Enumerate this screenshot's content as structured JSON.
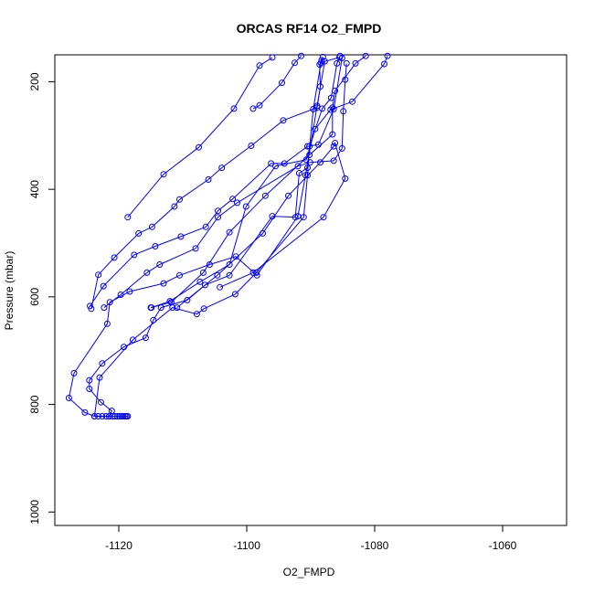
{
  "chart_data": {
    "type": "line",
    "title": "ORCAS RF14 O2_FMPD",
    "xlabel": "O2_FMPD",
    "ylabel": "Pressure (mbar)",
    "xlim": [
      -1130,
      -1050
    ],
    "ylim": [
      1025,
      150
    ],
    "y_inverted": true,
    "x_ticks": [
      -1120,
      -1100,
      -1080,
      -1060
    ],
    "x_tick_labels": [
      "-1120",
      "-1100",
      "-1080",
      "-1060"
    ],
    "y_ticks": [
      200,
      400,
      600,
      800,
      1000
    ],
    "y_tick_labels": [
      "200",
      "400",
      "600",
      "800",
      "1000"
    ],
    "grid": false,
    "legend": "none",
    "series_color": "#0000ff",
    "marker": "open-circle",
    "series": [
      {
        "points": [
          [
            -1118.6,
            822
          ],
          [
            -1118.8,
            822
          ],
          [
            -1119.0,
            822
          ],
          [
            -1119.3,
            822
          ],
          [
            -1119.6,
            822
          ],
          [
            -1119.9,
            822
          ],
          [
            -1120.2,
            822
          ],
          [
            -1120.6,
            822
          ],
          [
            -1121.0,
            822
          ],
          [
            -1121.5,
            822
          ],
          [
            -1122.0,
            822
          ],
          [
            -1122.6,
            822
          ],
          [
            -1123.2,
            822
          ],
          [
            -1123.8,
            822
          ],
          [
            -1125.3,
            815
          ],
          [
            -1127.8,
            788
          ],
          [
            -1127.0,
            742
          ],
          [
            -1121.8,
            650
          ],
          [
            -1121.4,
            610
          ],
          [
            -1118.3,
            590
          ],
          [
            -1113.0,
            575
          ],
          [
            -1110.5,
            560
          ],
          [
            -1105.8,
            540
          ],
          [
            -1101.7,
            525
          ],
          [
            -1098.4,
            560
          ],
          [
            -1092.0,
            450
          ],
          [
            -1090.8,
            374
          ],
          [
            -1089.0,
            245
          ],
          [
            -1087.8,
            162
          ],
          [
            -1085.5,
            155
          ]
        ]
      },
      {
        "points": [
          [
            -1121.5,
            822
          ],
          [
            -1121.1,
            812
          ],
          [
            -1122.8,
            796
          ],
          [
            -1124.6,
            771
          ],
          [
            -1124.6,
            755
          ],
          [
            -1122.6,
            724
          ],
          [
            -1119.2,
            693
          ],
          [
            -1115.8,
            676
          ],
          [
            -1114.6,
            643
          ],
          [
            -1113.4,
            620
          ],
          [
            -1109.3,
            606
          ],
          [
            -1106.5,
            578
          ],
          [
            -1102.7,
            560
          ],
          [
            -1096.0,
            450
          ],
          [
            -1092.4,
            452
          ],
          [
            -1091.8,
            370
          ],
          [
            -1090.5,
            360
          ],
          [
            -1089.6,
            251
          ],
          [
            -1088.4,
            165
          ],
          [
            -1088.3,
            160
          ]
        ]
      },
      {
        "points": [
          [
            -1123.8,
            822
          ],
          [
            -1123.0,
            750
          ],
          [
            -1117.8,
            680
          ],
          [
            -1111.6,
            620
          ],
          [
            -1107.8,
            632
          ],
          [
            -1106.7,
            622
          ],
          [
            -1101.8,
            595
          ],
          [
            -1098.5,
            555
          ],
          [
            -1091.1,
            452
          ],
          [
            -1090.5,
            374
          ],
          [
            -1090.2,
            320
          ],
          [
            -1088.2,
            250
          ],
          [
            -1086.8,
            230
          ],
          [
            -1085.9,
            166
          ],
          [
            -1085.4,
            152
          ]
        ]
      },
      {
        "points": [
          [
            -1124.3,
            622
          ],
          [
            -1123.2,
            559
          ],
          [
            -1120.7,
            527
          ],
          [
            -1116.9,
            482
          ],
          [
            -1114.8,
            470
          ],
          [
            -1111.3,
            432
          ],
          [
            -1110.5,
            419
          ],
          [
            -1106.0,
            382
          ],
          [
            -1103.9,
            360
          ],
          [
            -1099.3,
            319
          ],
          [
            -1094.3,
            272
          ],
          [
            -1089.0,
            248
          ],
          [
            -1088.5,
            209
          ],
          [
            -1088.6,
            168
          ],
          [
            -1088.1,
            154
          ]
        ]
      },
      {
        "points": [
          [
            -1124.5,
            617
          ],
          [
            -1122.4,
            580
          ],
          [
            -1117.6,
            522
          ],
          [
            -1114.3,
            506
          ],
          [
            -1110.3,
            488
          ],
          [
            -1106.4,
            470
          ],
          [
            -1104.5,
            440
          ],
          [
            -1102.2,
            418
          ],
          [
            -1096.2,
            352
          ],
          [
            -1094.1,
            352
          ],
          [
            -1090.5,
            320
          ],
          [
            -1088.8,
            317
          ],
          [
            -1086.4,
            251
          ],
          [
            -1085.1,
            156
          ]
        ]
      },
      {
        "points": [
          [
            -1122.3,
            620
          ],
          [
            -1119.7,
            596
          ],
          [
            -1115.6,
            555
          ],
          [
            -1113.6,
            540
          ],
          [
            -1108.0,
            510
          ],
          [
            -1104.5,
            452
          ],
          [
            -1101.5,
            425
          ],
          [
            -1092.0,
            357
          ],
          [
            -1090.1,
            350
          ],
          [
            -1086.4,
            347
          ],
          [
            -1085.1,
            324
          ],
          [
            -1084.9,
            255
          ],
          [
            -1084.6,
            196
          ],
          [
            -1084.4,
            166
          ]
        ]
      },
      {
        "points": [
          [
            -1118.6,
            452
          ],
          [
            -1113.0,
            372
          ],
          [
            -1107.5,
            322
          ],
          [
            -1102.0,
            250
          ],
          [
            -1098.0,
            170
          ],
          [
            -1096.0,
            155
          ]
        ]
      },
      {
        "points": [
          [
            -1114.9,
            620
          ],
          [
            -1112.0,
            608
          ],
          [
            -1107.3,
            572
          ],
          [
            -1102.7,
            540
          ],
          [
            -1100.1,
            432
          ],
          [
            -1095.5,
            357
          ],
          [
            -1090.7,
            345
          ],
          [
            -1089.3,
            288
          ],
          [
            -1086.9,
            252
          ],
          [
            -1083.5,
            237
          ],
          [
            -1078.5,
            167
          ],
          [
            -1078.0,
            152
          ]
        ]
      },
      {
        "points": [
          [
            -1115.0,
            620
          ],
          [
            -1111.8,
            610
          ],
          [
            -1106.8,
            555
          ],
          [
            -1102.7,
            480
          ],
          [
            -1097.1,
            412
          ],
          [
            -1090.2,
            336
          ],
          [
            -1086.6,
            298
          ],
          [
            -1086.6,
            248
          ],
          [
            -1086.2,
            217
          ],
          [
            -1083.0,
            166
          ],
          [
            -1081.4,
            152
          ]
        ]
      },
      {
        "points": [
          [
            -1110.9,
            620
          ],
          [
            -1104.6,
            560
          ],
          [
            -1097.5,
            482
          ],
          [
            -1093.5,
            412
          ],
          [
            -1088.5,
            350
          ],
          [
            -1086.4,
            320
          ],
          [
            -1086.2,
            314
          ],
          [
            -1084.6,
            380
          ],
          [
            -1088.0,
            452
          ],
          [
            -1099.0,
            555
          ],
          [
            -1104.2,
            582
          ]
        ]
      },
      {
        "points": [
          [
            -1099.0,
            250
          ],
          [
            -1098.0,
            244
          ],
          [
            -1094.5,
            202
          ],
          [
            -1092.5,
            165
          ],
          [
            -1091.5,
            152
          ]
        ]
      }
    ]
  }
}
